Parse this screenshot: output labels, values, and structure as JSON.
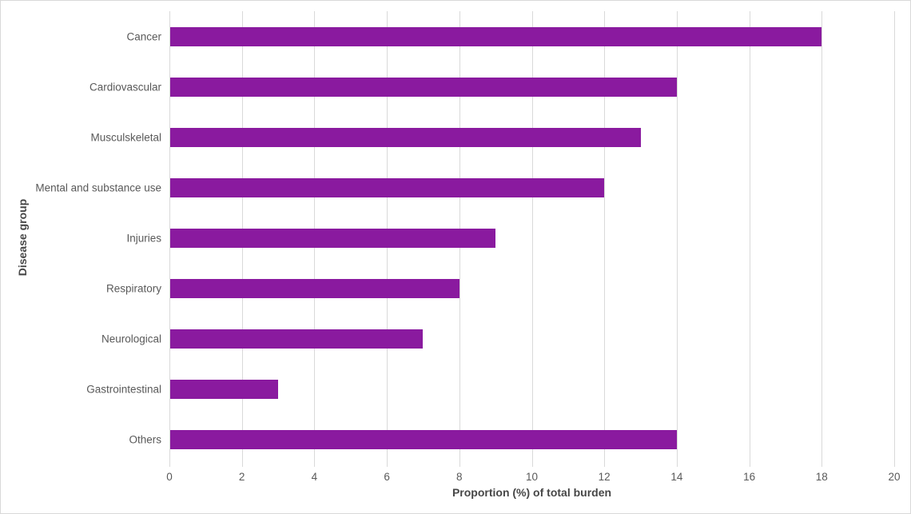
{
  "figure": {
    "background": "#ffffff",
    "border_color": "#d9d9d9"
  },
  "chart_data": {
    "type": "bar",
    "orientation": "horizontal",
    "title": "",
    "xlabel": "Proportion (%) of total burden",
    "ylabel": "Disease group",
    "categories": [
      "Cancer",
      "Cardiovascular",
      "Musculskeletal",
      "Mental and substance use",
      "Injuries",
      "Respiratory",
      "Neurological",
      "Gastrointestinal",
      "Others"
    ],
    "values": [
      18,
      14,
      13,
      12,
      9,
      8,
      7,
      3,
      14
    ],
    "xlim": [
      0,
      20
    ],
    "xticks": [
      0,
      2,
      4,
      6,
      8,
      10,
      12,
      14,
      16,
      18,
      20
    ],
    "bar_color": "#8a1a9f",
    "gridline_color": "#d9d9d9",
    "grid": true,
    "legend": "none"
  }
}
